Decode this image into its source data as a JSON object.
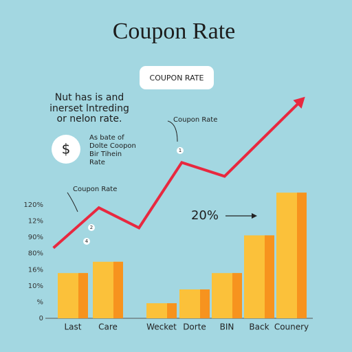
{
  "chart_data": {
    "type": "bar",
    "title": "Coupon Rate",
    "badge": "COUPON RATE",
    "note_lines": [
      "Nut has is and",
      "inerset lntreding",
      "or nelon rate."
    ],
    "icon": "$",
    "side_note_lines": [
      "As bate of",
      "Dolte Coopon",
      "Bir Tihein",
      "Rate"
    ],
    "annotations": [
      "Coupon Rate",
      "Coupon Rate",
      "20%"
    ],
    "markers": [
      "1",
      "2",
      "4"
    ],
    "categories": [
      "Last",
      "Care",
      "Wecket",
      "Dorte",
      "BIN",
      "Back",
      "Counery"
    ],
    "values": [
      36,
      45,
      12,
      23,
      36,
      66,
      100
    ],
    "color": "#fbc13a",
    "shade_color": "#f7931e",
    "ylim": [
      0,
      180
    ],
    "y_axis_labels": [
      "0",
      "%",
      "10%",
      "16%",
      "80%",
      "90%",
      "12%",
      "120%"
    ],
    "xlim": [
      0,
      100
    ],
    "line": {
      "color": "#e8283f",
      "x": [
        3,
        20,
        35,
        51,
        67,
        96
      ],
      "values": [
        56,
        88,
        72,
        124,
        113,
        174
      ]
    }
  }
}
